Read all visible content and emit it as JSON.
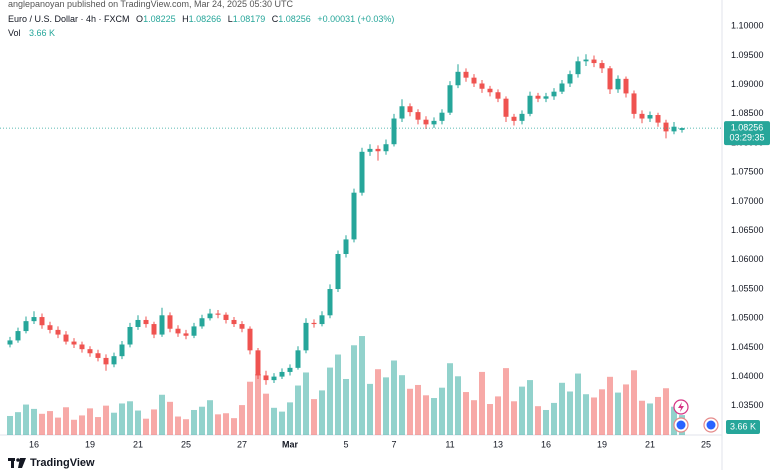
{
  "header": {
    "published": "anglepanoyan published on TradingView.com, Mar 24, 2025 05:30 UTC"
  },
  "footer": {
    "brand": "TradingView"
  },
  "chart_data": {
    "type": "candlestick",
    "symbol": "Euro / U.S. Dollar · 4h · FXCM",
    "quote": [
      {
        "key": "O",
        "value": 1.08225
      },
      {
        "key": "H",
        "value": 1.08266
      },
      {
        "key": "L",
        "value": 1.08179
      },
      {
        "key": "C",
        "value": 1.08256
      }
    ],
    "change": "+0.00031 (+0.03%)",
    "volume_name": "Vol",
    "volume_label": "3.66 K",
    "countdown": "03:29:35",
    "up_color": "#26a69a",
    "down_color": "#ef5350",
    "ylim": [
      1.03,
      1.1045
    ],
    "vlim": [
      0,
      80
    ],
    "yticks": [
      {
        "value": 1.1,
        "label": "1.10000"
      },
      {
        "value": 1.095,
        "label": "1.09500"
      },
      {
        "value": 1.09,
        "label": "1.09000"
      },
      {
        "value": 1.085,
        "label": "1.08500"
      },
      {
        "value": 1.08,
        "label": "1.08000"
      },
      {
        "value": 1.075,
        "label": "1.07500"
      },
      {
        "value": 1.07,
        "label": "1.07000"
      },
      {
        "value": 1.065,
        "label": "1.06500"
      },
      {
        "value": 1.06,
        "label": "1.06000"
      },
      {
        "value": 1.055,
        "label": "1.05500"
      },
      {
        "value": 1.05,
        "label": "1.05000"
      },
      {
        "value": 1.045,
        "label": "1.04500"
      },
      {
        "value": 1.04,
        "label": "1.04000"
      },
      {
        "value": 1.035,
        "label": "1.03500"
      }
    ],
    "categories": [
      null,
      null,
      null,
      "16",
      null,
      null,
      null,
      null,
      null,
      null,
      "19",
      null,
      null,
      null,
      null,
      null,
      "21",
      null,
      null,
      null,
      null,
      null,
      "25",
      null,
      null,
      null,
      null,
      null,
      null,
      "27",
      null,
      null,
      null,
      null,
      null,
      "Mar",
      null,
      null,
      null,
      null,
      null,
      null,
      "5",
      null,
      null,
      null,
      null,
      null,
      "7",
      null,
      null,
      null,
      null,
      null,
      null,
      "11",
      null,
      null,
      null,
      null,
      null,
      "13",
      null,
      null,
      null,
      null,
      null,
      "16",
      null,
      null,
      null,
      null,
      null,
      null,
      "19",
      null,
      null,
      null,
      null,
      null,
      "21",
      null,
      null,
      null,
      null,
      null,
      null,
      "25"
    ],
    "candles": [
      [
        1.0455,
        1.0468,
        1.045,
        1.0462,
        3.5
      ],
      [
        1.0462,
        1.0484,
        1.0458,
        1.0478,
        4.2
      ],
      [
        1.0478,
        1.0503,
        1.0474,
        1.0495,
        5.6
      ],
      [
        1.0495,
        1.0512,
        1.049,
        1.0502,
        4.8
      ],
      [
        1.0502,
        1.0508,
        1.0482,
        1.0488,
        3.9
      ],
      [
        1.0488,
        1.0494,
        1.0474,
        1.048,
        4.4
      ],
      [
        1.048,
        1.0486,
        1.0466,
        1.0472,
        3.2
      ],
      [
        1.0472,
        1.0478,
        1.0455,
        1.046,
        5.1
      ],
      [
        1.046,
        1.0466,
        1.0449,
        1.0455,
        2.8
      ],
      [
        1.0455,
        1.046,
        1.0441,
        1.0447,
        3.6
      ],
      [
        1.0447,
        1.0452,
        1.0434,
        1.044,
        4.9
      ],
      [
        1.044,
        1.0446,
        1.0426,
        1.0432,
        3.3
      ],
      [
        1.0432,
        1.0438,
        1.041,
        1.0421,
        5.4
      ],
      [
        1.0421,
        1.0441,
        1.0416,
        1.0435,
        4.1
      ],
      [
        1.0435,
        1.0461,
        1.043,
        1.0455,
        5.8
      ],
      [
        1.0455,
        1.0492,
        1.045,
        1.0485,
        6.2
      ],
      [
        1.0485,
        1.0505,
        1.048,
        1.0497,
        4.5
      ],
      [
        1.0497,
        1.0503,
        1.0484,
        1.049,
        3.0
      ],
      [
        1.049,
        1.0494,
        1.0466,
        1.0472,
        4.7
      ],
      [
        1.0472,
        1.0518,
        1.0468,
        1.0505,
        7.4
      ],
      [
        1.0505,
        1.051,
        1.0476,
        1.0482,
        6.1
      ],
      [
        1.0482,
        1.0488,
        1.0468,
        1.0474,
        3.4
      ],
      [
        1.0474,
        1.048,
        1.0464,
        1.047,
        2.9
      ],
      [
        1.047,
        1.0492,
        1.0466,
        1.0486,
        4.6
      ],
      [
        1.0486,
        1.0506,
        1.0482,
        1.05,
        5.2
      ],
      [
        1.05,
        1.0516,
        1.0496,
        1.0508,
        6.4
      ],
      [
        1.0508,
        1.0514,
        1.05,
        1.0506,
        3.8
      ],
      [
        1.0506,
        1.051,
        1.0491,
        1.0497,
        4.0
      ],
      [
        1.0497,
        1.0502,
        1.0485,
        1.049,
        3.1
      ],
      [
        1.049,
        1.0495,
        1.0476,
        1.0482,
        5.5
      ],
      [
        1.0482,
        1.0486,
        1.0438,
        1.0445,
        9.8
      ],
      [
        1.0445,
        1.0449,
        1.0396,
        1.0402,
        11.2
      ],
      [
        1.0402,
        1.041,
        1.0386,
        1.0394,
        7.6
      ],
      [
        1.0394,
        1.0406,
        1.0389,
        1.04,
        5.0
      ],
      [
        1.04,
        1.0414,
        1.0396,
        1.0408,
        4.3
      ],
      [
        1.0408,
        1.0421,
        1.0402,
        1.0415,
        6.0
      ],
      [
        1.0415,
        1.0452,
        1.0412,
        1.0445,
        9.1
      ],
      [
        1.0445,
        1.05,
        1.044,
        1.0492,
        11.5
      ],
      [
        1.0492,
        1.0498,
        1.0484,
        1.049,
        6.6
      ],
      [
        1.049,
        1.0512,
        1.0486,
        1.0505,
        8.2
      ],
      [
        1.0505,
        1.0558,
        1.05,
        1.055,
        12.4
      ],
      [
        1.055,
        1.0616,
        1.0545,
        1.061,
        14.8
      ],
      [
        1.061,
        1.0642,
        1.0604,
        1.0635,
        10.3
      ],
      [
        1.0635,
        1.0722,
        1.063,
        1.0715,
        16.5
      ],
      [
        1.0715,
        1.0792,
        1.071,
        1.0785,
        18.2
      ],
      [
        1.0785,
        1.0798,
        1.0778,
        1.079,
        9.4
      ],
      [
        1.079,
        1.0796,
        1.077,
        1.0786,
        12.1
      ],
      [
        1.0786,
        1.0806,
        1.078,
        1.0798,
        10.6
      ],
      [
        1.0798,
        1.085,
        1.0794,
        1.0842,
        13.7
      ],
      [
        1.0842,
        1.0875,
        1.0836,
        1.0863,
        11.0
      ],
      [
        1.0863,
        1.0868,
        1.0846,
        1.0853,
        8.5
      ],
      [
        1.0853,
        1.0858,
        1.0832,
        1.084,
        9.2
      ],
      [
        1.084,
        1.0846,
        1.0824,
        1.0832,
        7.3
      ],
      [
        1.0832,
        1.0844,
        1.0826,
        1.0838,
        6.8
      ],
      [
        1.0838,
        1.0858,
        1.0832,
        1.0852,
        8.7
      ],
      [
        1.0852,
        1.0906,
        1.0848,
        1.0899,
        13.2
      ],
      [
        1.0899,
        1.0935,
        1.0894,
        1.0922,
        10.8
      ],
      [
        1.0922,
        1.0928,
        1.0905,
        1.0912,
        7.9
      ],
      [
        1.0912,
        1.0918,
        1.0896,
        1.0902,
        6.4
      ],
      [
        1.0902,
        1.0908,
        1.0886,
        1.0893,
        11.6
      ],
      [
        1.0893,
        1.0898,
        1.088,
        1.0887,
        5.7
      ],
      [
        1.0887,
        1.0892,
        1.087,
        1.0876,
        7.1
      ],
      [
        1.0876,
        1.088,
        1.0836,
        1.0845,
        12.3
      ],
      [
        1.0845,
        1.085,
        1.083,
        1.0838,
        6.2
      ],
      [
        1.0838,
        1.0856,
        1.0832,
        1.085,
        8.9
      ],
      [
        1.085,
        1.0888,
        1.0846,
        1.0881,
        10.1
      ],
      [
        1.0881,
        1.0886,
        1.087,
        1.0876,
        5.3
      ],
      [
        1.0876,
        1.0886,
        1.087,
        1.088,
        4.6
      ],
      [
        1.088,
        1.0894,
        1.0874,
        1.0888,
        5.9
      ],
      [
        1.0888,
        1.0908,
        1.0884,
        1.0902,
        9.6
      ],
      [
        1.0902,
        1.0924,
        1.0896,
        1.0918,
        8.0
      ],
      [
        1.0918,
        1.0948,
        1.0912,
        1.094,
        11.3
      ],
      [
        1.094,
        1.0952,
        1.0932,
        1.0943,
        7.5
      ],
      [
        1.0943,
        1.095,
        1.093,
        1.0937,
        6.9
      ],
      [
        1.0937,
        1.0942,
        1.092,
        1.0928,
        8.4
      ],
      [
        1.0928,
        1.0932,
        1.0884,
        1.0892,
        10.7
      ],
      [
        1.0892,
        1.0916,
        1.0886,
        1.091,
        7.8
      ],
      [
        1.091,
        1.0914,
        1.0878,
        1.0885,
        9.3
      ],
      [
        1.0885,
        1.089,
        1.0842,
        1.085,
        11.9
      ],
      [
        1.085,
        1.0856,
        1.0834,
        1.0842,
        6.3
      ],
      [
        1.0842,
        1.0854,
        1.0836,
        1.0848,
        5.8
      ],
      [
        1.0848,
        1.0852,
        1.0828,
        1.0835,
        7.0
      ],
      [
        1.0835,
        1.084,
        1.0808,
        1.082,
        8.6
      ],
      [
        1.082,
        1.0836,
        1.0815,
        1.0828,
        5.2
      ],
      [
        1.08225,
        1.08266,
        1.08179,
        1.08256,
        3.66
      ],
      null,
      null,
      null
    ]
  }
}
